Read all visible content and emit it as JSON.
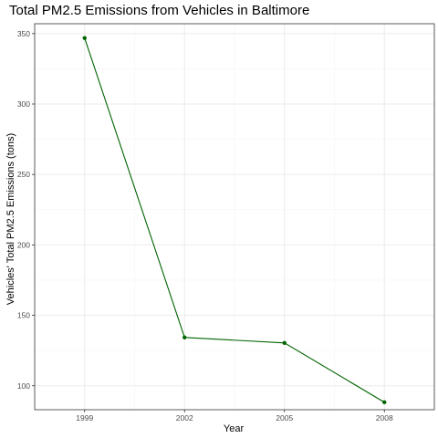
{
  "chart_data": {
    "type": "line",
    "title": "Total PM2.5 Emissions from Vehicles in Baltimore",
    "xlabel": "Year",
    "ylabel": "Vehicles' Total PM2.5 Emissions (tons)",
    "x": [
      1999,
      2002,
      2005,
      2008
    ],
    "series": [
      {
        "values": [
          346.82,
          134.31,
          130.43,
          88.28
        ]
      }
    ],
    "xlim": [
      1997.5,
      2009.5
    ],
    "ylim": [
      83,
      357
    ],
    "x_ticks": [
      "1999",
      "2002",
      "2005",
      "2008"
    ],
    "y_ticks": [
      "100",
      "150",
      "200",
      "250",
      "300",
      "350"
    ],
    "grid": true,
    "legend": "none",
    "colors": {
      "line": "#006400",
      "grid": "#ebebeb",
      "border": "#333333"
    }
  }
}
